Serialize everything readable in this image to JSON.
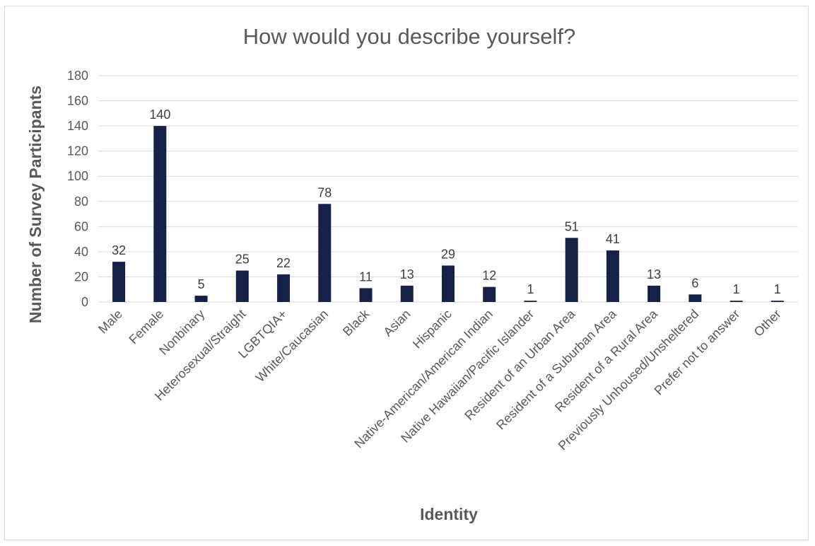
{
  "chart_data": {
    "type": "bar",
    "title": "How would you describe yourself?",
    "xlabel": "Identity",
    "ylabel": "Number of Survey Participants",
    "categories": [
      "Male",
      "Female",
      "Nonbinary",
      "Heterosexual/Straight",
      "LGBTQIA+",
      "White/Caucasian",
      "Black",
      "Asian",
      "Hispanic",
      "Native-American/American Indian",
      "Native Hawaiian/Pacific Islander",
      "Resident of an Urban Area",
      "Resident of a Suburban Area",
      "Resident of a Rural Area",
      "Previously Unhoused/Unsheltered",
      "Prefer not to answer",
      "Other"
    ],
    "values": [
      32,
      140,
      5,
      25,
      22,
      78,
      11,
      13,
      29,
      12,
      1,
      51,
      41,
      13,
      6,
      1,
      1
    ],
    "ylim": [
      0,
      180
    ],
    "yticks": [
      0,
      20,
      40,
      60,
      80,
      100,
      120,
      140,
      160,
      180
    ],
    "grid": true,
    "data_labels": true,
    "bar_color": "#152147",
    "grid_color": "#d9d9d9"
  }
}
